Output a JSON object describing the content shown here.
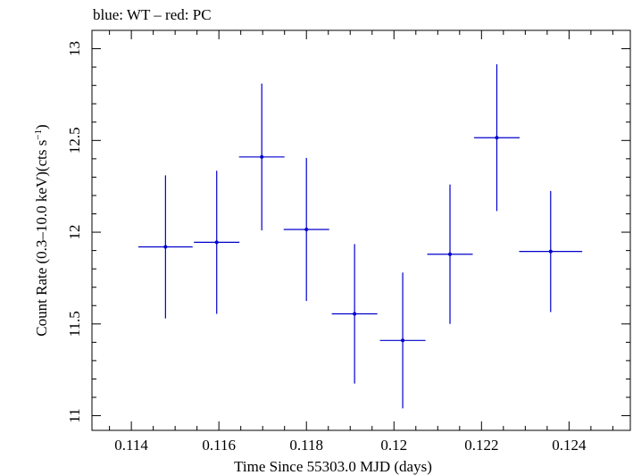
{
  "chart_data": {
    "type": "scatter",
    "title": "blue: WT – red: PC",
    "xlabel": "Time Since 55303.0 MJD (days)",
    "ylabel": "Count Rate (0.3–10.0 keV)(cts s",
    "ylabel_superscript": "−1",
    "ylabel_suffix": ")",
    "xlim": [
      0.1131,
      0.1254
    ],
    "ylim": [
      10.92,
      13.1
    ],
    "x_ticks": [
      0.114,
      0.116,
      0.118,
      0.12,
      0.122,
      0.124
    ],
    "x_tick_labels": [
      "0.114",
      "0.116",
      "0.118",
      "0.12",
      "0.122",
      "0.124"
    ],
    "y_ticks": [
      11,
      11.5,
      12,
      12.5,
      13
    ],
    "y_tick_labels": [
      "11",
      "11.5",
      "12",
      "12.5",
      "13"
    ],
    "grid": false,
    "series": [
      {
        "color": "#0000cc",
        "points": [
          {
            "x": 0.11478,
            "y": 11.92,
            "xerr": 0.00062,
            "yerr": 0.39
          },
          {
            "x": 0.11595,
            "y": 11.945,
            "xerr": 0.00052,
            "yerr": 0.39
          },
          {
            "x": 0.11698,
            "y": 12.41,
            "xerr": 0.00052,
            "yerr": 0.4
          },
          {
            "x": 0.118,
            "y": 12.015,
            "xerr": 0.00052,
            "yerr": 0.39
          },
          {
            "x": 0.1191,
            "y": 11.555,
            "xerr": 0.00052,
            "yerr": 0.38
          },
          {
            "x": 0.1202,
            "y": 11.41,
            "xerr": 0.00052,
            "yerr": 0.37
          },
          {
            "x": 0.12128,
            "y": 11.88,
            "xerr": 0.00052,
            "yerr": 0.38
          },
          {
            "x": 0.12235,
            "y": 12.515,
            "xerr": 0.00052,
            "yerr": 0.4
          },
          {
            "x": 0.12358,
            "y": 11.895,
            "xerr": 0.00072,
            "yerr": 0.33
          }
        ]
      }
    ]
  }
}
